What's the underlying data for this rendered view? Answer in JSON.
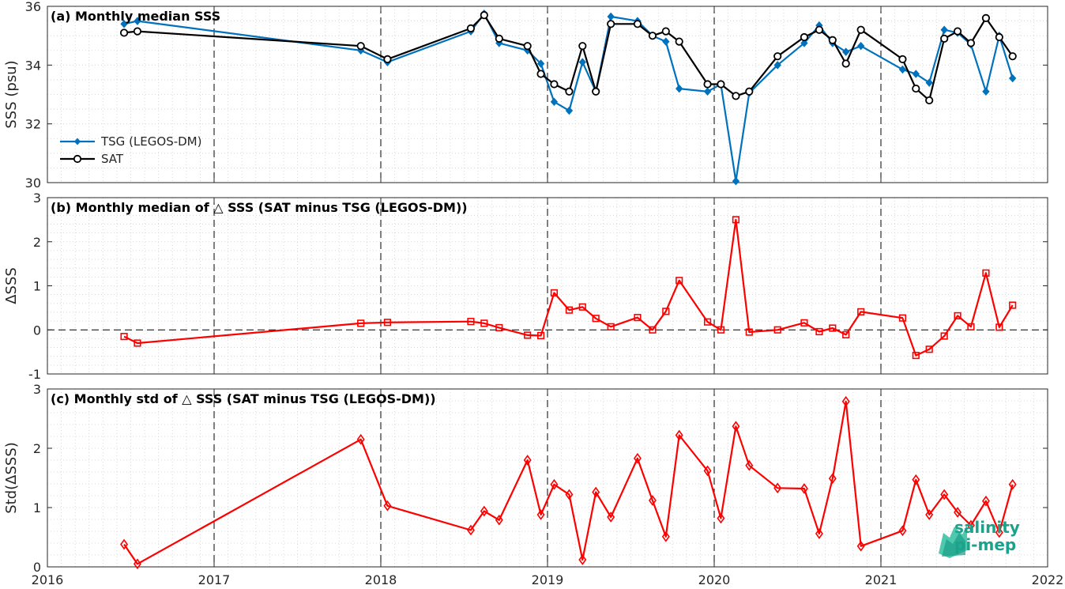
{
  "chart_data": [
    {
      "type": "line",
      "title": "(a) Monthly median SSS",
      "xlabel": "",
      "ylabel": "SSS (psu)",
      "xlim": [
        2016,
        2022
      ],
      "ylim": [
        30,
        36
      ],
      "yticks": [
        "30",
        "32",
        "34",
        "36"
      ],
      "grid": true,
      "legend": "lower-left",
      "series": [
        {
          "name": "TSG (LEGOS-DM)",
          "color": "#0072BD",
          "marker": "diamond-filled",
          "x": [
            2016.46,
            2016.54,
            2017.88,
            2018.04,
            2018.54,
            2018.62,
            2018.71,
            2018.88,
            2018.96,
            2019.04,
            2019.13,
            2019.21,
            2019.29,
            2019.38,
            2019.54,
            2019.63,
            2019.71,
            2019.79,
            2019.96,
            2020.04,
            2020.13,
            2020.21,
            2020.38,
            2020.54,
            2020.63,
            2020.71,
            2020.79,
            2020.88,
            2021.13,
            2021.21,
            2021.29,
            2021.38,
            2021.46,
            2021.54,
            2021.63,
            2021.71,
            2021.79
          ],
          "y": [
            35.4,
            35.5,
            34.5,
            34.1,
            35.15,
            35.75,
            34.75,
            34.5,
            34.05,
            32.75,
            32.45,
            34.1,
            33.1,
            35.65,
            35.5,
            35.0,
            34.8,
            33.2,
            33.1,
            33.35,
            30.05,
            33.05,
            34.0,
            34.75,
            35.35,
            34.75,
            34.45,
            34.65,
            33.85,
            33.7,
            33.4,
            35.2,
            35.1,
            34.7,
            33.1,
            35.0,
            33.55
          ]
        },
        {
          "name": "SAT",
          "color": "#000000",
          "marker": "circle-open",
          "x": [
            2016.46,
            2016.54,
            2017.88,
            2018.04,
            2018.54,
            2018.62,
            2018.71,
            2018.88,
            2018.96,
            2019.04,
            2019.13,
            2019.21,
            2019.29,
            2019.38,
            2019.54,
            2019.63,
            2019.71,
            2019.79,
            2019.96,
            2020.04,
            2020.13,
            2020.21,
            2020.38,
            2020.54,
            2020.63,
            2020.71,
            2020.79,
            2020.88,
            2021.13,
            2021.21,
            2021.29,
            2021.38,
            2021.46,
            2021.54,
            2021.63,
            2021.71,
            2021.79
          ],
          "y": [
            35.1,
            35.15,
            34.65,
            34.2,
            35.25,
            35.7,
            34.9,
            34.65,
            33.7,
            33.35,
            33.1,
            34.65,
            33.1,
            35.4,
            35.4,
            35.0,
            35.15,
            34.8,
            33.35,
            33.35,
            32.95,
            33.1,
            34.3,
            34.95,
            35.2,
            34.85,
            34.05,
            35.2,
            34.2,
            33.2,
            32.8,
            34.9,
            35.15,
            34.75,
            35.6,
            34.95,
            34.3
          ]
        }
      ]
    },
    {
      "type": "line",
      "title": "(b) Monthly median of △ SSS (SAT minus TSG (LEGOS-DM))",
      "xlabel": "",
      "ylabel": "ΔSSS",
      "xlim": [
        2016,
        2022
      ],
      "ylim": [
        -1,
        3
      ],
      "yticks": [
        "-1",
        "0",
        "1",
        "2",
        "3"
      ],
      "grid": true,
      "reference_line": 0,
      "series": [
        {
          "color": "#FF0000",
          "marker": "square-open",
          "x": [
            2016.46,
            2016.54,
            2017.88,
            2018.04,
            2018.54,
            2018.62,
            2018.71,
            2018.88,
            2018.96,
            2019.04,
            2019.13,
            2019.21,
            2019.29,
            2019.38,
            2019.54,
            2019.63,
            2019.71,
            2019.79,
            2019.96,
            2020.04,
            2020.13,
            2020.21,
            2020.38,
            2020.54,
            2020.63,
            2020.71,
            2020.79,
            2020.88,
            2021.13,
            2021.21,
            2021.29,
            2021.38,
            2021.46,
            2021.54,
            2021.63,
            2021.71,
            2021.79
          ],
          "y": [
            -0.15,
            -0.3,
            0.15,
            0.17,
            0.19,
            0.15,
            0.05,
            -0.12,
            -0.13,
            0.84,
            0.45,
            0.52,
            0.26,
            0.07,
            0.28,
            0.0,
            0.42,
            1.12,
            0.18,
            0.0,
            2.5,
            -0.05,
            0.0,
            0.16,
            -0.04,
            0.04,
            -0.11,
            0.41,
            0.27,
            -0.58,
            -0.44,
            -0.14,
            0.32,
            0.07,
            1.29,
            0.06,
            0.56
          ]
        }
      ]
    },
    {
      "type": "line",
      "title": "(c) Monthly std of △ SSS (SAT minus TSG (LEGOS-DM))",
      "xlabel": "",
      "ylabel": "Std(ΔSSS)",
      "xlim": [
        2016,
        2022
      ],
      "ylim": [
        0,
        3
      ],
      "yticks": [
        "0",
        "1",
        "2",
        "3"
      ],
      "xticks": [
        "2016",
        "2017",
        "2018",
        "2019",
        "2020",
        "2021",
        "2022"
      ],
      "grid": true,
      "series": [
        {
          "color": "#FF0000",
          "marker": "diamond-open",
          "x": [
            2016.46,
            2016.54,
            2017.88,
            2018.04,
            2018.54,
            2018.62,
            2018.71,
            2018.88,
            2018.96,
            2019.04,
            2019.13,
            2019.21,
            2019.29,
            2019.38,
            2019.54,
            2019.63,
            2019.71,
            2019.79,
            2019.96,
            2020.04,
            2020.13,
            2020.21,
            2020.38,
            2020.54,
            2020.63,
            2020.71,
            2020.79,
            2020.88,
            2021.13,
            2021.21,
            2021.29,
            2021.38,
            2021.46,
            2021.54,
            2021.63,
            2021.71,
            2021.79
          ],
          "y": [
            0.38,
            0.05,
            2.15,
            1.03,
            0.62,
            0.94,
            0.79,
            1.8,
            0.88,
            1.39,
            1.22,
            0.12,
            1.26,
            0.84,
            1.83,
            1.12,
            0.51,
            2.22,
            1.62,
            0.82,
            2.37,
            1.71,
            1.33,
            1.32,
            0.56,
            1.49,
            2.79,
            0.35,
            0.61,
            1.47,
            0.88,
            1.22,
            0.92,
            0.7,
            1.11,
            0.58,
            1.39
          ]
        }
      ]
    }
  ],
  "logo": {
    "line1": "salinity",
    "line2": "pi-mep"
  }
}
